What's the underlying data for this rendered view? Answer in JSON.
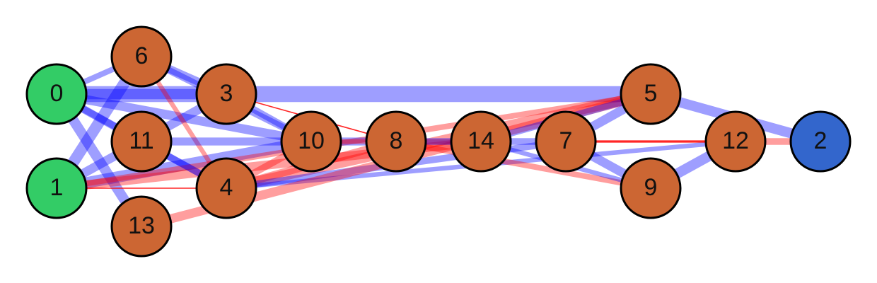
{
  "nodes": [
    {
      "id": "0",
      "label": "0",
      "group": "source"
    },
    {
      "id": "1",
      "label": "1",
      "group": "source"
    },
    {
      "id": "2",
      "label": "2",
      "group": "sink"
    },
    {
      "id": "3",
      "label": "3",
      "group": "hidden"
    },
    {
      "id": "4",
      "label": "4",
      "group": "hidden"
    },
    {
      "id": "5",
      "label": "5",
      "group": "hidden"
    },
    {
      "id": "6",
      "label": "6",
      "group": "hidden"
    },
    {
      "id": "7",
      "label": "7",
      "group": "hidden"
    },
    {
      "id": "8",
      "label": "8",
      "group": "hidden"
    },
    {
      "id": "9",
      "label": "9",
      "group": "hidden"
    },
    {
      "id": "10",
      "label": "10",
      "group": "hidden"
    },
    {
      "id": "11",
      "label": "11",
      "group": "hidden"
    },
    {
      "id": "12",
      "label": "12",
      "group": "hidden"
    },
    {
      "id": "13",
      "label": "13",
      "group": "hidden"
    },
    {
      "id": "14",
      "label": "14",
      "group": "hidden"
    }
  ],
  "group_colors": {
    "source": "#33cc66",
    "sink": "#3366cc",
    "hidden": "#cc6633"
  },
  "edge_colors": {
    "positive": "#0000ff",
    "negative": "#ff0000"
  },
  "edges": [
    {
      "from": "0",
      "to": "6",
      "sign": "positive",
      "weight": 5
    },
    {
      "from": "0",
      "to": "3",
      "sign": "positive",
      "weight": 9
    },
    {
      "from": "0",
      "to": "11",
      "sign": "positive",
      "weight": 7
    },
    {
      "from": "0",
      "to": "10",
      "sign": "positive",
      "weight": 8
    },
    {
      "from": "0",
      "to": "13",
      "sign": "positive",
      "weight": 9
    },
    {
      "from": "0",
      "to": "4",
      "sign": "positive",
      "weight": 6
    },
    {
      "from": "0",
      "to": "5",
      "sign": "positive",
      "weight": 14
    },
    {
      "from": "1",
      "to": "6",
      "sign": "positive",
      "weight": 10
    },
    {
      "from": "1",
      "to": "3",
      "sign": "positive",
      "weight": 8
    },
    {
      "from": "1",
      "to": "10",
      "sign": "positive",
      "weight": 10
    },
    {
      "from": "1",
      "to": "4",
      "sign": "negative",
      "weight": 1
    },
    {
      "from": "1",
      "to": "14",
      "sign": "negative",
      "weight": 8
    },
    {
      "from": "1",
      "to": "5",
      "sign": "negative",
      "weight": 5
    },
    {
      "from": "6",
      "to": "3",
      "sign": "positive",
      "weight": 7
    },
    {
      "from": "6",
      "to": "4",
      "sign": "negative",
      "weight": 4
    },
    {
      "from": "6",
      "to": "10",
      "sign": "positive",
      "weight": 6
    },
    {
      "from": "3",
      "to": "10",
      "sign": "positive",
      "weight": 6
    },
    {
      "from": "3",
      "to": "8",
      "sign": "negative",
      "weight": 1
    },
    {
      "from": "11",
      "to": "10",
      "sign": "positive",
      "weight": 7
    },
    {
      "from": "11",
      "to": "4",
      "sign": "positive",
      "weight": 6
    },
    {
      "from": "4",
      "to": "10",
      "sign": "negative",
      "weight": 6
    },
    {
      "from": "4",
      "to": "8",
      "sign": "negative",
      "weight": 7
    },
    {
      "from": "4",
      "to": "5",
      "sign": "negative",
      "weight": 9
    },
    {
      "from": "4",
      "to": "7",
      "sign": "positive",
      "weight": 6
    },
    {
      "from": "4",
      "to": "12",
      "sign": "positive",
      "weight": 4
    },
    {
      "from": "13",
      "to": "5",
      "sign": "negative",
      "weight": 8
    },
    {
      "from": "10",
      "to": "8",
      "sign": "positive",
      "weight": 7
    },
    {
      "from": "10",
      "to": "14",
      "sign": "negative",
      "weight": 4
    },
    {
      "from": "8",
      "to": "14",
      "sign": "positive",
      "weight": 6
    },
    {
      "from": "8",
      "to": "9",
      "sign": "negative",
      "weight": 5
    },
    {
      "from": "14",
      "to": "7",
      "sign": "positive",
      "weight": 6
    },
    {
      "from": "14",
      "to": "5",
      "sign": "positive",
      "weight": 6
    },
    {
      "from": "14",
      "to": "9",
      "sign": "positive",
      "weight": 4
    },
    {
      "from": "7",
      "to": "5",
      "sign": "positive",
      "weight": 8
    },
    {
      "from": "7",
      "to": "12",
      "sign": "negative",
      "weight": 2
    },
    {
      "from": "7",
      "to": "9",
      "sign": "positive",
      "weight": 8
    },
    {
      "from": "5",
      "to": "2",
      "sign": "positive",
      "weight": 9
    },
    {
      "from": "9",
      "to": "12",
      "sign": "positive",
      "weight": 9
    },
    {
      "from": "12",
      "to": "2",
      "sign": "negative",
      "weight": 6
    }
  ]
}
